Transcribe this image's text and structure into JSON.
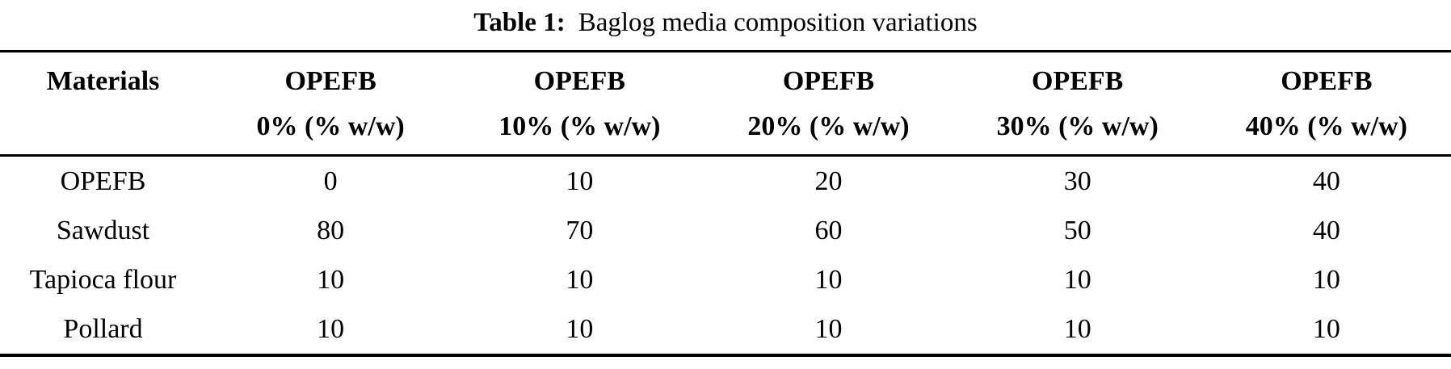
{
  "caption": {
    "label": "Table 1:",
    "text": "Baglog media composition variations"
  },
  "header": {
    "materials": "Materials",
    "cols": [
      {
        "line1": "OPEFB",
        "line2": "0% (% w/w)"
      },
      {
        "line1": "OPEFB",
        "line2": "10% (% w/w)"
      },
      {
        "line1": "OPEFB",
        "line2": "20% (% w/w)"
      },
      {
        "line1": "OPEFB",
        "line2": "30% (% w/w)"
      },
      {
        "line1": "OPEFB",
        "line2": "40% (% w/w)"
      }
    ]
  },
  "chart_data": {
    "type": "table",
    "title": "Table 1: Baglog media composition variations",
    "columns": [
      "Materials",
      "OPEFB 0% (% w/w)",
      "OPEFB 10% (% w/w)",
      "OPEFB 20% (% w/w)",
      "OPEFB 30% (% w/w)",
      "OPEFB 40% (% w/w)"
    ],
    "rows": [
      [
        "OPEFB",
        "0",
        "10",
        "20",
        "30",
        "40"
      ],
      [
        "Sawdust",
        "80",
        "70",
        "60",
        "50",
        "40"
      ],
      [
        "Tapioca flour",
        "10",
        "10",
        "10",
        "10",
        "10"
      ],
      [
        "Pollard",
        "10",
        "10",
        "10",
        "10",
        "10"
      ]
    ],
    "text_color": "#000000",
    "background_color": "#ffffff"
  }
}
